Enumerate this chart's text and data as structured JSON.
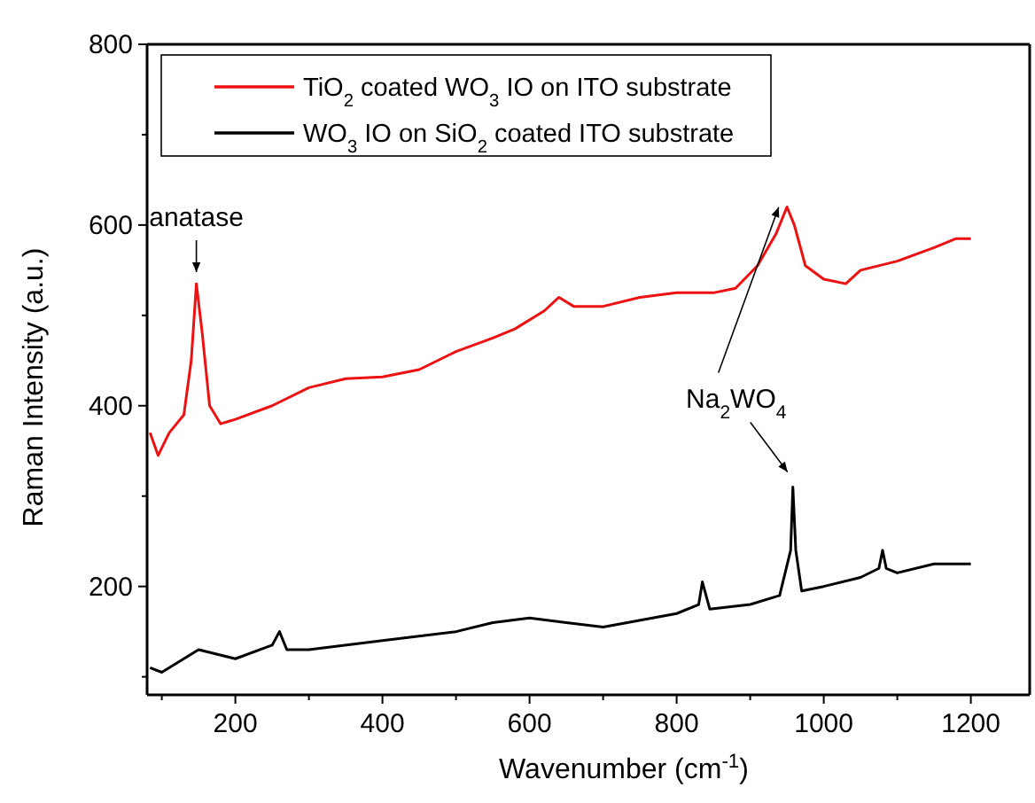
{
  "chart_data": {
    "type": "line",
    "xlabel": "Wavenumber (cm$^{-1}$)",
    "ylabel": "Raman Intensity (a.u.)",
    "xlim": [
      80,
      1280
    ],
    "ylim": [
      80,
      800
    ],
    "xticks": [
      {
        "value": 100,
        "label": null
      },
      200,
      {
        "value": 300,
        "label": null
      },
      400,
      {
        "value": 500,
        "label": null
      },
      600,
      {
        "value": 700,
        "label": null
      },
      800,
      {
        "value": 900,
        "label": null
      },
      1000,
      {
        "value": 1100,
        "label": null
      },
      1200
    ],
    "yticks": [
      {
        "value": 100,
        "label": null
      },
      200,
      {
        "value": 300,
        "label": null
      },
      400,
      {
        "value": 500,
        "label": null
      },
      600,
      {
        "value": 700,
        "label": null
      },
      800
    ],
    "legend": "top left",
    "marker": "none",
    "line_style": "solid",
    "grid": false,
    "series": [
      {
        "name": "TiO$_{2}$ coated WO$_{3}$ IO on ITO substrate",
        "color": "#ee1111",
        "x": [
          84,
          95,
          110,
          130,
          140,
          147,
          155,
          165,
          180,
          200,
          250,
          300,
          350,
          400,
          450,
          500,
          550,
          580,
          620,
          640,
          660,
          700,
          750,
          800,
          850,
          880,
          910,
          935,
          950,
          960,
          975,
          1000,
          1030,
          1050,
          1100,
          1150,
          1180,
          1200
        ],
        "values": [
          370,
          345,
          370,
          390,
          450,
          535,
          480,
          400,
          380,
          385,
          400,
          420,
          430,
          432,
          440,
          460,
          475,
          485,
          505,
          520,
          510,
          510,
          520,
          525,
          525,
          530,
          555,
          590,
          620,
          600,
          555,
          540,
          535,
          550,
          560,
          575,
          585,
          585
        ]
      },
      {
        "name": "WO$_{3}$ IO on SiO$_{2}$ coated ITO substrate",
        "color": "#000000",
        "x": [
          84,
          100,
          150,
          200,
          250,
          260,
          270,
          300,
          400,
          500,
          550,
          600,
          650,
          700,
          800,
          830,
          835,
          845,
          900,
          940,
          955,
          958,
          962,
          970,
          1000,
          1050,
          1075,
          1080,
          1085,
          1100,
          1150,
          1200
        ],
        "values": [
          110,
          105,
          130,
          120,
          135,
          150,
          130,
          130,
          140,
          150,
          160,
          165,
          160,
          155,
          170,
          180,
          205,
          175,
          180,
          190,
          240,
          310,
          240,
          195,
          200,
          210,
          220,
          240,
          220,
          215,
          225,
          225
        ]
      }
    ],
    "annotations": [
      {
        "text": "anatase",
        "x": 147,
        "y": 540
      },
      {
        "text": "Na$_{2}$WO$_{4}$",
        "x": 958,
        "y": 315
      }
    ]
  }
}
